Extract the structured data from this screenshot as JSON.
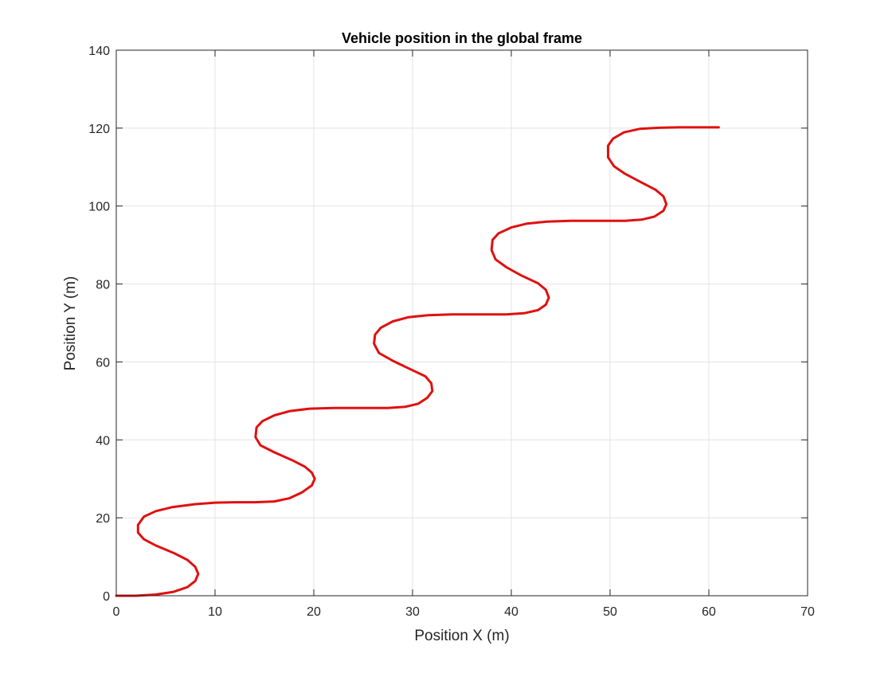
{
  "chart_data": {
    "type": "line",
    "title": "Vehicle position in the global frame",
    "xlabel": "Position X (m)",
    "ylabel": "Position Y (m)",
    "xlim": [
      0,
      70
    ],
    "ylim": [
      0,
      140
    ],
    "xticks": [
      0,
      10,
      20,
      30,
      40,
      50,
      60,
      70
    ],
    "yticks": [
      0,
      20,
      40,
      60,
      80,
      100,
      120,
      140
    ],
    "xtick_labels": [
      "0",
      "10",
      "20",
      "30",
      "40",
      "50",
      "60",
      "70"
    ],
    "ytick_labels": [
      "0",
      "20",
      "40",
      "60",
      "80",
      "100",
      "120",
      "140"
    ],
    "grid": true,
    "line_color": "#e01010",
    "series": [
      {
        "x": [
          0,
          2,
          4,
          5.8,
          7.2,
          8.0,
          8.3,
          8.0,
          7.2,
          5.8,
          4.0,
          2.8,
          2.2,
          2.2,
          2.8,
          4.0,
          5.6,
          8.0,
          10,
          12,
          14,
          16,
          17.5,
          18.8,
          19.8,
          20.1,
          19.8,
          19.1,
          17.8,
          16,
          14.6,
          14.1,
          14.2,
          14.8,
          16,
          17.6,
          19.6,
          22,
          25,
          27.5,
          29.3,
          30.6,
          31.5,
          32.0,
          31.9,
          31.3,
          29.8,
          28,
          26.6,
          26.1,
          26.2,
          26.8,
          28,
          29.6,
          31.6,
          34,
          37,
          39.5,
          41.3,
          42.7,
          43.5,
          43.8,
          43.5,
          42.7,
          41,
          39.5,
          38.4,
          38.0,
          38.1,
          38.7,
          40,
          41.6,
          43.6,
          46,
          49,
          51.5,
          53.2,
          54.5,
          55.4,
          55.7,
          55.4,
          54.6,
          53,
          51.5,
          50.4,
          49.8,
          49.8,
          50.3,
          51.4,
          53,
          55,
          57,
          59,
          61
        ],
        "y": [
          0,
          0,
          0.3,
          1.0,
          2.2,
          3.8,
          5.6,
          7.4,
          9.2,
          11,
          12.9,
          14.5,
          16.2,
          18.2,
          20.3,
          21.7,
          22.7,
          23.5,
          23.9,
          24.0,
          24.0,
          24.2,
          25.0,
          26.5,
          28.3,
          30.0,
          31.6,
          33.1,
          34.8,
          36.8,
          38.6,
          40.7,
          43.2,
          44.8,
          46.3,
          47.4,
          48.0,
          48.2,
          48.2,
          48.2,
          48.5,
          49.3,
          50.8,
          52.5,
          54.5,
          56.3,
          58.1,
          60.3,
          62.3,
          64.7,
          67.0,
          68.8,
          70.4,
          71.5,
          72.0,
          72.2,
          72.2,
          72.2,
          72.5,
          73.3,
          74.7,
          76.5,
          78.5,
          80.2,
          82.2,
          84.3,
          86.3,
          88.7,
          91.3,
          93.0,
          94.5,
          95.5,
          96.0,
          96.2,
          96.2,
          96.2,
          96.5,
          97.3,
          98.8,
          100.5,
          102.5,
          104.2,
          106.3,
          108.3,
          110.2,
          112.5,
          115.5,
          117.3,
          118.9,
          119.8,
          120.1,
          120.2,
          120.2,
          120.2
        ]
      }
    ]
  }
}
